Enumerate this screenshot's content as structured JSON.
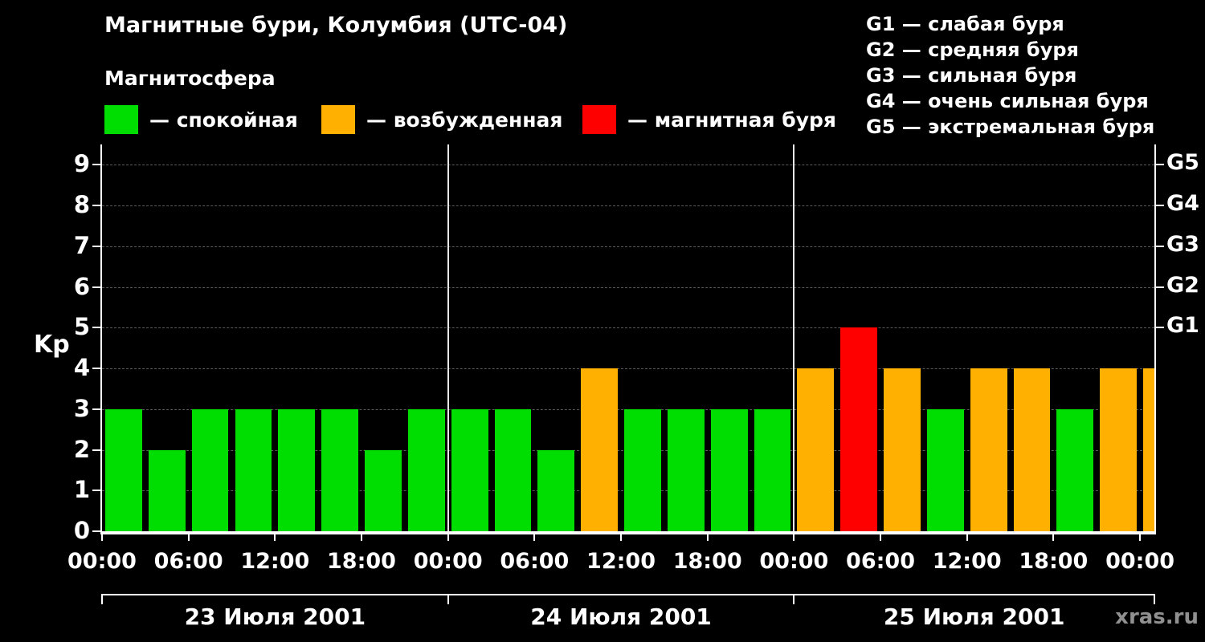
{
  "title": "Магнитные бури, Колумбия (UTC-04)",
  "subtitle": "Магнитосфера",
  "condition_legend": [
    {
      "name": "quiet",
      "label": "— спокойная",
      "color": "#00dd00"
    },
    {
      "name": "disturbed",
      "label": "— возбужденная",
      "color": "#ffb000"
    },
    {
      "name": "storm",
      "label": "— магнитная буря",
      "color": "#ff0000"
    }
  ],
  "storm_scale_legend": [
    "G1 — слабая буря",
    "G2 — средняя буря",
    "G3 — сильная буря",
    "G4 — очень сильная буря",
    "G5 — экстремальная буря"
  ],
  "watermark": "xras.ru",
  "chart_data": {
    "type": "bar",
    "title": "Магнитные бури, Колумбия (UTC-04)",
    "ylabel": "Kp",
    "ylim": [
      0,
      9.5
    ],
    "yticks": [
      0,
      1,
      2,
      3,
      4,
      5,
      6,
      7,
      8,
      9
    ],
    "right_axis_ticks": [
      {
        "label": "G1",
        "kp": 5
      },
      {
        "label": "G2",
        "kp": 6
      },
      {
        "label": "G3",
        "kp": 7
      },
      {
        "label": "G4",
        "kp": 8
      },
      {
        "label": "G5",
        "kp": 9
      }
    ],
    "x_tick_labels": [
      "00:00",
      "06:00",
      "12:00",
      "18:00",
      "00:00",
      "06:00",
      "12:00",
      "18:00",
      "00:00",
      "06:00",
      "12:00",
      "18:00",
      "00:00"
    ],
    "bar_interval_hours": 3,
    "days": [
      {
        "date": "23 Июля 2001",
        "values": [
          3,
          2,
          3,
          3,
          3,
          3,
          2,
          3
        ]
      },
      {
        "date": "24 Июля 2001",
        "values": [
          3,
          3,
          2,
          4,
          3,
          3,
          3,
          3
        ]
      },
      {
        "date": "25 Июля 2001",
        "values": [
          4,
          5,
          4,
          3,
          4,
          4,
          3,
          4
        ]
      }
    ],
    "next_partial_value": 4,
    "color_rules": {
      "quiet_max_kp": 3,
      "storm_min_kp": 5,
      "quiet_color": "#00dd00",
      "disturbed_color": "#ffb000",
      "storm_color": "#ff0000"
    },
    "grid": "horizontal dashed lines at each Kp level",
    "legend_position": "top"
  }
}
